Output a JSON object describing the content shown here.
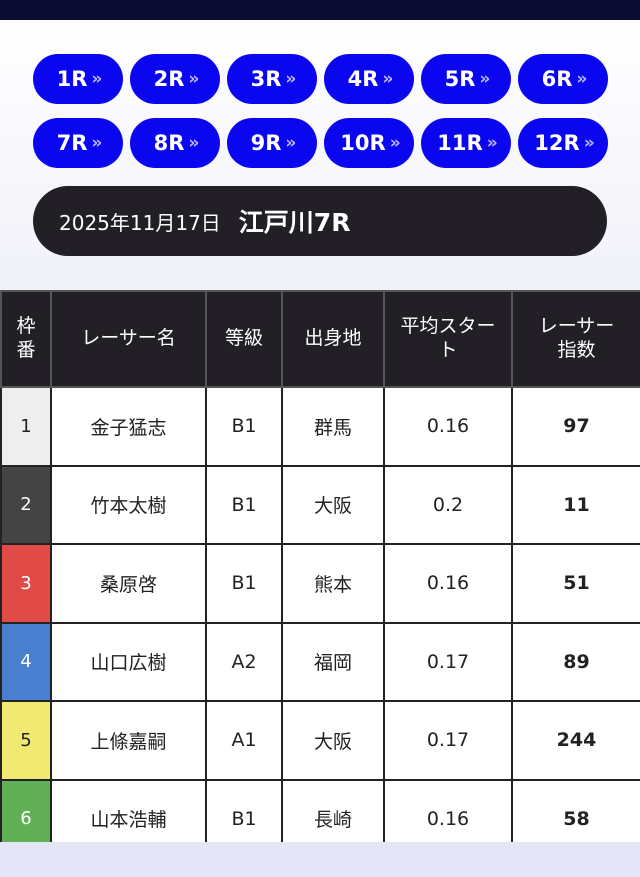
{
  "races": [
    {
      "label": "1R"
    },
    {
      "label": "2R"
    },
    {
      "label": "3R"
    },
    {
      "label": "4R"
    },
    {
      "label": "5R"
    },
    {
      "label": "6R"
    },
    {
      "label": "7R"
    },
    {
      "label": "8R"
    },
    {
      "label": "9R"
    },
    {
      "label": "10R"
    },
    {
      "label": "11R"
    },
    {
      "label": "12R"
    }
  ],
  "chevron": "»",
  "header": {
    "date": "2025年11月17日",
    "venue_race": "江戸川7R"
  },
  "table": {
    "headers": [
      "枠番",
      "レーサー名",
      "等級",
      "出身地",
      "平均スタート",
      "レーサー指数"
    ],
    "rows": [
      {
        "frame": "1",
        "name": "金子猛志",
        "grade": "B1",
        "origin": "群馬",
        "avg_start": "0.16",
        "index": "97",
        "frame_color": "#eeeeee",
        "frame_text": "#222222"
      },
      {
        "frame": "2",
        "name": "竹本太樹",
        "grade": "B1",
        "origin": "大阪",
        "avg_start": "0.2",
        "index": "11",
        "frame_color": "#444444",
        "frame_text": "#ffffff"
      },
      {
        "frame": "3",
        "name": "桑原啓",
        "grade": "B1",
        "origin": "熊本",
        "avg_start": "0.16",
        "index": "51",
        "frame_color": "#e04a47",
        "frame_text": "#ffffff"
      },
      {
        "frame": "4",
        "name": "山口広樹",
        "grade": "A2",
        "origin": "福岡",
        "avg_start": "0.17",
        "index": "89",
        "frame_color": "#4a7fd0",
        "frame_text": "#ffffff"
      },
      {
        "frame": "5",
        "name": "上條嘉嗣",
        "grade": "A1",
        "origin": "大阪",
        "avg_start": "0.17",
        "index": "244",
        "frame_color": "#f0ea72",
        "frame_text": "#222222"
      },
      {
        "frame": "6",
        "name": "山本浩輔",
        "grade": "B1",
        "origin": "長崎",
        "avg_start": "0.16",
        "index": "58",
        "frame_color": "#62b055",
        "frame_text": "#ffffff"
      }
    ]
  },
  "colors": {
    "accent": "#0a06f0",
    "dark": "#222026"
  }
}
